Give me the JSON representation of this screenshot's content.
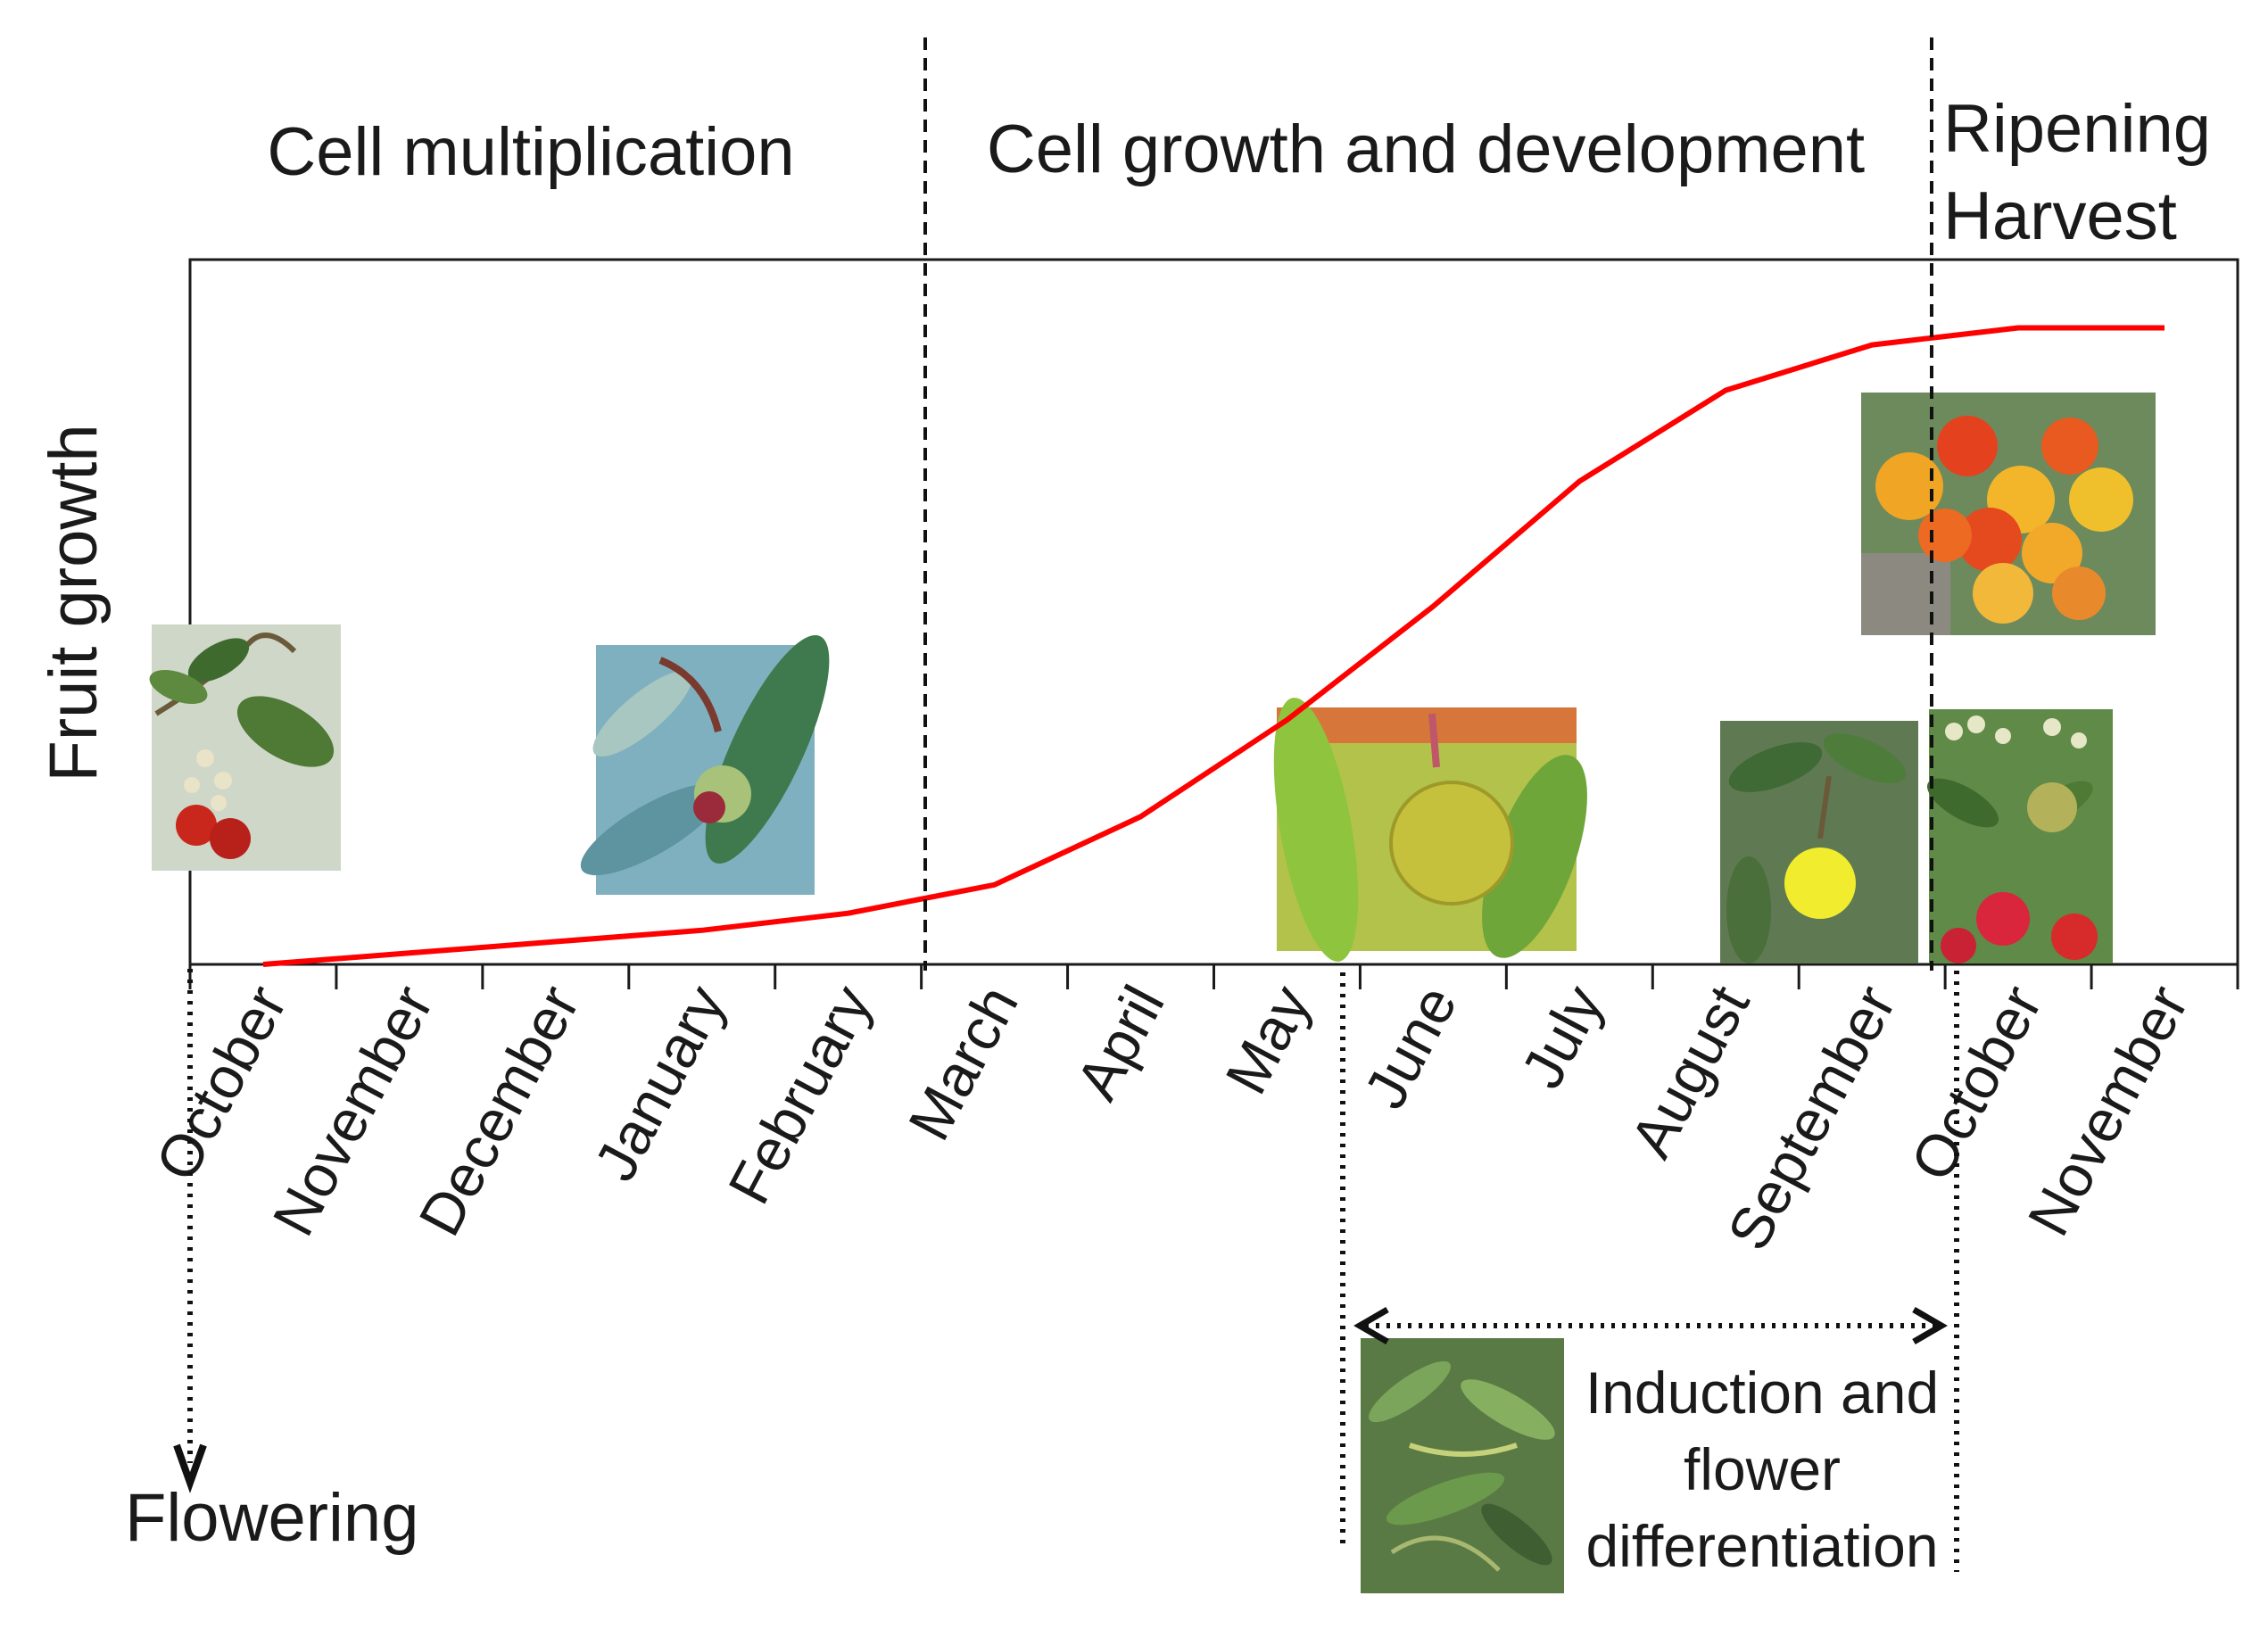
{
  "chart_data": {
    "type": "line",
    "title": "",
    "ylabel": "Fruit growth",
    "xlabel": "",
    "categories": [
      "October",
      "November",
      "December",
      "January",
      "February",
      "March",
      "April",
      "May",
      "June",
      "July",
      "August",
      "September",
      "October",
      "November"
    ],
    "series": [
      {
        "name": "Fruit growth",
        "color": "#ff0000",
        "values": [
          0.0,
          0.02,
          0.04,
          0.06,
          0.09,
          0.14,
          0.26,
          0.43,
          0.63,
          0.85,
          1.01,
          1.09,
          1.12,
          1.12
        ]
      }
    ],
    "ylim": [
      0,
      1.24
    ],
    "phases": [
      {
        "label": "Cell multiplication"
      },
      {
        "label": "Cell growth and development"
      },
      {
        "label_line1": "Ripening",
        "label_line2": "Harvest"
      }
    ],
    "annotations": {
      "flowering": "Flowering",
      "induction_line1": "Induction and",
      "induction_line2": "flower",
      "induction_line3": "differentiation"
    },
    "photos": [
      {
        "icon": "flowers-and-ripe-fruit-photo"
      },
      {
        "icon": "young-fruit-photo"
      },
      {
        "icon": "green-fruit-photo"
      },
      {
        "icon": "yellow-fruit-photo"
      },
      {
        "icon": "ripening-fruit-cluster-photo"
      },
      {
        "icon": "flower-buds-and-fruit-photo"
      },
      {
        "icon": "floral-induction-shoots-photo"
      }
    ]
  }
}
